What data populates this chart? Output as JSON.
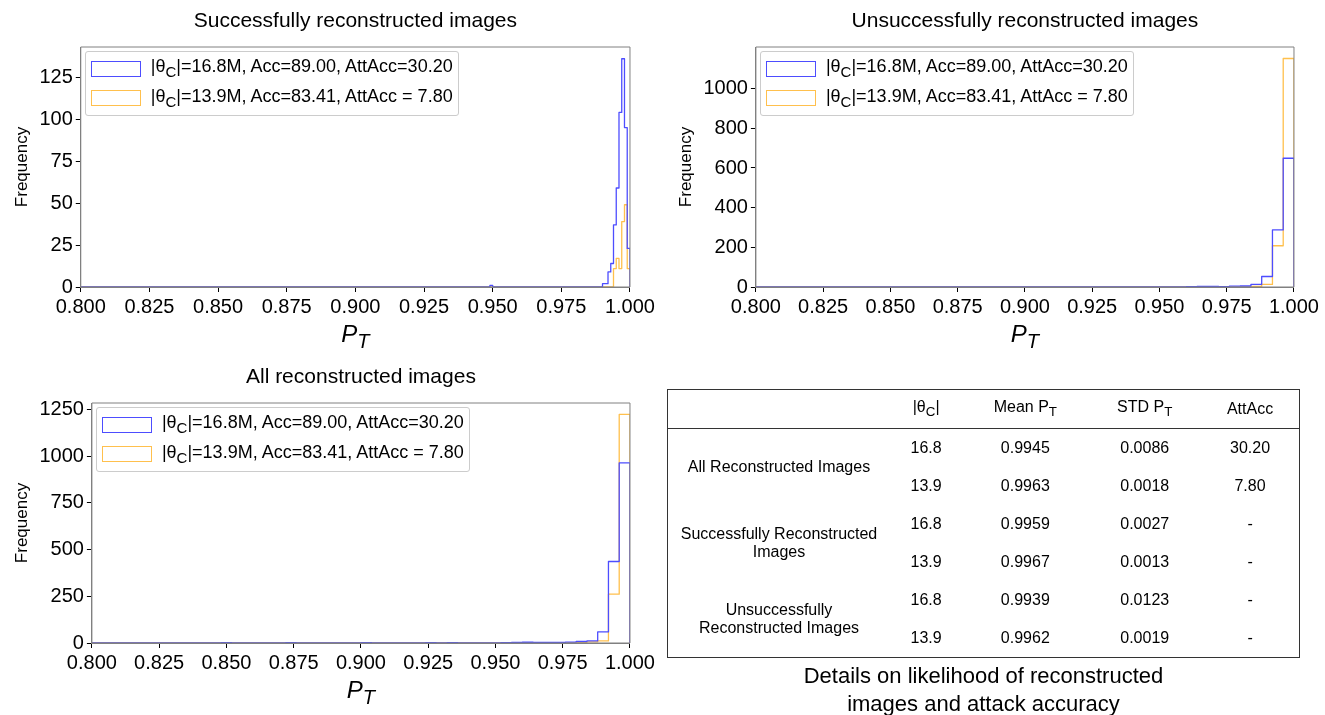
{
  "chart_data": [
    {
      "type": "histogram",
      "title": "Successfully reconstructed images",
      "xlabel": "P$_{T}$",
      "ylabel": "Frequency",
      "legend": "top left",
      "bins": [
        0.8,
        0.949,
        0.95,
        0.99,
        0.991,
        0.992,
        0.993,
        0.994,
        0.995,
        0.996,
        0.997,
        0.998,
        0.999,
        1.0
      ],
      "series": [
        {
          "name": "|θ$_{C}$|=16.8M, Acc=89.00, AttAcc=30.20",
          "color": "#4d4dff",
          "values": [
            0,
            1,
            0,
            2,
            2,
            9,
            14,
            37,
            59,
            104,
            136,
            95,
            23
          ]
        },
        {
          "name": "|θ$_{C}$|=13.9M, Acc=83.41, AttAcc = 7.80",
          "color": "#ffc04d",
          "values": [
            0,
            0,
            0,
            0,
            0,
            0,
            0,
            11,
            17,
            11,
            39,
            49,
            11
          ]
        }
      ],
      "xlim": [
        0.8,
        1.0
      ],
      "xticks": [
        {
          "value": 0.8,
          "label": "0.800"
        },
        {
          "value": 0.825,
          "label": "0.825"
        },
        {
          "value": 0.85,
          "label": "0.850"
        },
        {
          "value": 0.875,
          "label": "0.875"
        },
        {
          "value": 0.9,
          "label": "0.900"
        },
        {
          "value": 0.925,
          "label": "0.925"
        },
        {
          "value": 0.95,
          "label": "0.950"
        },
        {
          "value": 0.975,
          "label": "0.975"
        },
        {
          "value": 1.0,
          "label": "1.000"
        }
      ],
      "ylim": [
        0,
        143
      ],
      "yticks": [
        0,
        25,
        50,
        75,
        100,
        125
      ]
    },
    {
      "type": "histogram",
      "title": "Unsuccessfully reconstructed images",
      "xlabel": "P$_{T}$",
      "ylabel": "Frequency",
      "legend": "top left",
      "bins": [
        0.8,
        0.804,
        0.808,
        0.812,
        0.816,
        0.82,
        0.824,
        0.828,
        0.832,
        0.836,
        0.84,
        0.844,
        0.848,
        0.852,
        0.856,
        0.86,
        0.864,
        0.868,
        0.872,
        0.876,
        0.88,
        0.884,
        0.888,
        0.892,
        0.896,
        0.9,
        0.904,
        0.908,
        0.912,
        0.916,
        0.92,
        0.924,
        0.928,
        0.932,
        0.936,
        0.94,
        0.944,
        0.948,
        0.952,
        0.956,
        0.96,
        0.964,
        0.968,
        0.972,
        0.976,
        0.98,
        0.984,
        0.988,
        0.992,
        0.996,
        1.0
      ],
      "series": [
        {
          "name": "|θ$_{C}$|=16.8M, Acc=89.00, AttAcc=30.20",
          "color": "#4d4dff",
          "values": [
            0,
            0,
            0,
            0,
            0,
            0,
            0,
            0,
            0,
            0,
            0,
            0,
            1,
            0,
            0,
            0,
            0,
            0,
            1,
            0,
            0,
            0,
            0,
            0,
            0,
            1,
            0,
            0,
            0,
            0,
            0,
            1,
            0,
            1,
            0,
            0,
            0,
            0,
            0,
            0,
            2,
            3,
            3,
            2,
            4,
            5,
            13,
            53,
            288,
            649
          ]
        },
        {
          "name": "|θ$_{C}$|=13.9M, Acc=83.41, AttAcc = 7.80",
          "color": "#ffc04d",
          "values": [
            0,
            0,
            0,
            0,
            0,
            0,
            0,
            0,
            0,
            0,
            0,
            0,
            0,
            0,
            0,
            0,
            0,
            0,
            0,
            0,
            0,
            0,
            0,
            0,
            0,
            0,
            0,
            0,
            0,
            0,
            0,
            0,
            0,
            0,
            0,
            0,
            0,
            0,
            0,
            0,
            0,
            0,
            0,
            0,
            1,
            2,
            3,
            13,
            208,
            1152
          ]
        }
      ],
      "xlim": [
        0.8,
        1.0
      ],
      "xticks": [
        {
          "value": 0.8,
          "label": "0.800"
        },
        {
          "value": 0.825,
          "label": "0.825"
        },
        {
          "value": 0.85,
          "label": "0.850"
        },
        {
          "value": 0.875,
          "label": "0.875"
        },
        {
          "value": 0.9,
          "label": "0.900"
        },
        {
          "value": 0.925,
          "label": "0.925"
        },
        {
          "value": 0.95,
          "label": "0.950"
        },
        {
          "value": 0.975,
          "label": "0.975"
        },
        {
          "value": 1.0,
          "label": "1.000"
        }
      ],
      "ylim": [
        0,
        1210
      ],
      "yticks": [
        0,
        200,
        400,
        600,
        800,
        1000
      ]
    },
    {
      "type": "histogram",
      "title": "All reconstructed images",
      "xlabel": "P$_{T}$",
      "ylabel": "Frequency",
      "legend": "top left",
      "bins": [
        0.8,
        0.804,
        0.808,
        0.812,
        0.816,
        0.82,
        0.824,
        0.828,
        0.832,
        0.836,
        0.84,
        0.844,
        0.848,
        0.852,
        0.856,
        0.86,
        0.864,
        0.868,
        0.872,
        0.876,
        0.88,
        0.884,
        0.888,
        0.892,
        0.896,
        0.9,
        0.904,
        0.908,
        0.912,
        0.916,
        0.92,
        0.924,
        0.928,
        0.932,
        0.936,
        0.94,
        0.944,
        0.948,
        0.952,
        0.956,
        0.96,
        0.964,
        0.968,
        0.972,
        0.976,
        0.98,
        0.984,
        0.988,
        0.992,
        0.996,
        1.0
      ],
      "series": [
        {
          "name": "|θ$_{C}$|=16.8M, Acc=89.00, AttAcc=30.20",
          "color": "#4d4dff",
          "values": [
            0,
            0,
            0,
            0,
            0,
            0,
            0,
            0,
            0,
            0,
            0,
            0,
            2,
            0,
            0,
            0,
            0,
            0,
            2,
            0,
            0,
            0,
            0,
            0,
            0,
            2,
            0,
            0,
            0,
            0,
            0,
            2,
            0,
            2,
            0,
            0,
            0,
            0,
            2,
            3,
            4,
            3,
            3,
            3,
            5,
            8,
            11,
            59,
            436,
            964
          ]
        },
        {
          "name": "|θ$_{C}$|=13.9M, Acc=83.41, AttAcc = 7.80",
          "color": "#ffc04d",
          "values": [
            0,
            0,
            0,
            0,
            0,
            0,
            0,
            0,
            0,
            0,
            0,
            0,
            0,
            0,
            0,
            0,
            0,
            0,
            0,
            0,
            0,
            0,
            0,
            0,
            0,
            0,
            0,
            0,
            0,
            0,
            0,
            0,
            0,
            0,
            0,
            0,
            0,
            0,
            0,
            0,
            0,
            0,
            0,
            0,
            2,
            3,
            6,
            11,
            261,
            1223
          ]
        }
      ],
      "xlim": [
        0.8,
        1.0
      ],
      "xticks": [
        {
          "value": 0.8,
          "label": "0.800"
        },
        {
          "value": 0.825,
          "label": "0.825"
        },
        {
          "value": 0.85,
          "label": "0.850"
        },
        {
          "value": 0.875,
          "label": "0.875"
        },
        {
          "value": 0.9,
          "label": "0.900"
        },
        {
          "value": 0.925,
          "label": "0.925"
        },
        {
          "value": 0.95,
          "label": "0.950"
        },
        {
          "value": 0.975,
          "label": "0.975"
        },
        {
          "value": 1.0,
          "label": "1.000"
        }
      ],
      "ylim": [
        0,
        1284
      ],
      "yticks": [
        0,
        250,
        500,
        750,
        1000,
        1250
      ]
    },
    {
      "type": "other",
      "title": "Details on likelihood of reconstructed images and attack accuracy",
      "categories": [
        "|θ$_{C}$|",
        "Mean P$_{T}$",
        "STD P$_{T}$",
        "AttAcc"
      ],
      "y_categories": [
        "All Reconstructed Images",
        "Successfully Reconstructed Images",
        "Unsuccessfully Reconstructed Images"
      ],
      "cell_labels": [
        [
          "16.8",
          "0.9945",
          "0.0086",
          "30.20"
        ],
        [
          "13.9",
          "0.9963",
          "0.0018",
          "7.80"
        ],
        [
          "16.8",
          "0.9959",
          "0.0027",
          "-"
        ],
        [
          "13.9",
          "0.9967",
          "0.0013",
          "-"
        ],
        [
          "16.8",
          "0.9939",
          "0.0123",
          "-"
        ],
        [
          "13.9",
          "0.9962",
          "0.0019",
          "-"
        ]
      ]
    }
  ]
}
